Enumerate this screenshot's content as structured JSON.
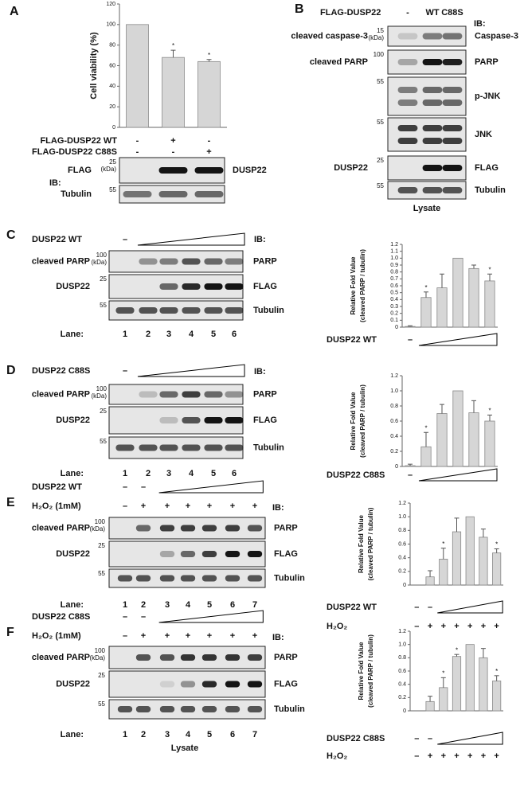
{
  "panel_labels": [
    "A",
    "B",
    "C",
    "D",
    "E",
    "F"
  ],
  "chart_data": [
    {
      "type": "bar",
      "ylabel": "Cell viability (%)",
      "values": [
        100,
        68,
        64
      ],
      "errors": [
        null,
        7,
        2
      ],
      "significance": [
        null,
        "*",
        "*"
      ],
      "color": "#d6d6d6",
      "ylim": [
        0,
        120
      ],
      "yticks": [
        0,
        20,
        40,
        60,
        80,
        100,
        120
      ],
      "conditions": [
        {
          "label": "FLAG-DUSP22 WT",
          "marks": [
            "-",
            "+",
            "-"
          ]
        },
        {
          "label": "FLAG-DUSP22 C88S",
          "marks": [
            "-",
            "-",
            "+"
          ]
        }
      ]
    },
    {
      "type": "bar",
      "ylabel": [
        "Relative Fold Value",
        "(cleaved PARP / tubulin)"
      ],
      "values": [
        0.01,
        0.43,
        0.57,
        1.0,
        0.85,
        0.67
      ],
      "errors": [
        0.01,
        0.08,
        0.2,
        null,
        0.05,
        0.1
      ],
      "significance": [
        null,
        "*",
        null,
        null,
        null,
        "*"
      ],
      "color": "#d6d6d6",
      "ylim": [
        0,
        1.2
      ],
      "yticks": [
        0,
        0.1,
        0.2,
        0.3,
        0.4,
        0.5,
        0.6,
        0.7,
        0.8,
        0.9,
        {
          "value": 1,
          "label": "1.0"
        },
        1.1,
        1.2
      ],
      "conditions": [
        {
          "label": "DUSP22 WT",
          "marks": [
            "–",
            null,
            null,
            null,
            null,
            null
          ]
        }
      ]
    },
    {
      "type": "bar",
      "ylabel": [
        "Relative Fold Value",
        "(cleaved PARP / tubulin)"
      ],
      "values": [
        0.01,
        0.26,
        0.7,
        1.0,
        0.71,
        0.6
      ],
      "errors": [
        0.02,
        0.19,
        0.12,
        null,
        0.16,
        0.08
      ],
      "significance": [
        null,
        "*",
        null,
        null,
        null,
        "*"
      ],
      "color": "#d6d6d6",
      "ylim": [
        0,
        1.2
      ],
      "yticks": [
        0,
        0.2,
        0.4,
        0.6,
        0.8,
        {
          "value": 1,
          "label": "1.0"
        },
        1.2
      ],
      "conditions": [
        {
          "label": "DUSP22 C88S",
          "marks": [
            "–",
            null,
            null,
            null,
            null,
            null
          ]
        }
      ]
    },
    {
      "type": "bar",
      "ylabel": [
        "Relative Fold Value",
        "(cleaved PARP / tubulin)"
      ],
      "values": [
        0,
        0.12,
        0.38,
        0.78,
        1.0,
        0.7,
        0.47
      ],
      "errors": [
        null,
        0.09,
        0.16,
        0.2,
        null,
        0.12,
        0.06
      ],
      "significance": [
        null,
        null,
        "*",
        null,
        null,
        null,
        "*"
      ],
      "color": "#d6d6d6",
      "ylim": [
        0,
        1.2
      ],
      "yticks": [
        0,
        0.2,
        0.4,
        0.6,
        0.8,
        {
          "value": 1,
          "label": "1.0"
        },
        1.2
      ],
      "conditions": [
        {
          "label": "DUSP22 WT",
          "marks": [
            "–",
            "–",
            null,
            null,
            null,
            null,
            null
          ]
        },
        {
          "label": "H₂O₂",
          "marks": [
            "–",
            "+",
            "+",
            "+",
            "+",
            "+",
            "+"
          ]
        }
      ]
    },
    {
      "type": "bar",
      "ylabel": [
        "Relative Fold Value",
        "(cleaved PARP / tubulin)"
      ],
      "values": [
        0,
        0.14,
        0.35,
        0.82,
        1.0,
        0.8,
        0.45
      ],
      "errors": [
        null,
        0.08,
        0.15,
        0.03,
        null,
        0.14,
        0.08
      ],
      "significance": [
        null,
        null,
        "*",
        "*",
        null,
        null,
        "*"
      ],
      "color": "#d6d6d6",
      "ylim": [
        0,
        1.2
      ],
      "yticks": [
        0,
        0.2,
        0.4,
        0.6,
        0.8,
        {
          "value": 1,
          "label": "1.0"
        },
        1.2
      ],
      "conditions": [
        {
          "label": "DUSP22 C88S",
          "marks": [
            "–",
            "–",
            null,
            null,
            null,
            null,
            null
          ]
        },
        {
          "label": "H₂O₂",
          "marks": [
            "–",
            "+",
            "+",
            "+",
            "+",
            "+",
            "+"
          ]
        }
      ]
    }
  ],
  "blots": [
    {
      "ib": "IB:",
      "rows": [
        {
          "marker": "25",
          "unit": "(kDa)",
          "left": "FLAG",
          "right": "DUSP22"
        },
        {
          "marker": "55",
          "left": "Tubulin"
        }
      ]
    },
    {
      "headers": [
        {
          "label": "FLAG-DUSP22",
          "marks": [
            "-",
            "WT",
            "C88S"
          ]
        }
      ],
      "ib": "IB:",
      "rows": [
        {
          "marker": "15",
          "unit": "(kDa)",
          "left": "cleaved caspase-3",
          "right": "Caspase-3"
        },
        {
          "marker": "100",
          "left": "cleaved PARP",
          "right": "PARP"
        },
        {
          "marker": "55",
          "right": "p-JNK"
        },
        {
          "marker": "55",
          "right": "JNK"
        },
        {
          "marker": "25",
          "left": "DUSP22",
          "right": "FLAG"
        },
        {
          "marker": "55",
          "right": "Tubulin"
        }
      ],
      "footer": "Lysate"
    },
    {
      "headers": [
        {
          "label": "DUSP22 WT",
          "marks": [
            "–",
            null,
            null,
            null,
            null,
            null
          ]
        }
      ],
      "ib": "IB:",
      "rows": [
        {
          "marker": "100",
          "unit": "(kDa)",
          "left": "cleaved PARP",
          "right": "PARP"
        },
        {
          "marker": "25",
          "left": "DUSP22",
          "right": "FLAG"
        },
        {
          "marker": "55",
          "right": "Tubulin"
        }
      ],
      "lane_label": "Lane:",
      "lanes": [
        "1",
        "2",
        "3",
        "4",
        "5",
        "6"
      ]
    },
    {
      "headers": [
        {
          "label": "DUSP22 C88S",
          "marks": [
            "–",
            null,
            null,
            null,
            null,
            null
          ]
        }
      ],
      "ib": "IB:",
      "rows": [
        {
          "marker": "100",
          "unit": "(kDa)",
          "left": "cleaved PARP",
          "right": "PARP"
        },
        {
          "marker": "25",
          "left": "DUSP22",
          "right": "FLAG"
        },
        {
          "marker": "55",
          "right": "Tubulin"
        }
      ],
      "lane_label": "Lane:",
      "lanes": [
        "1",
        "2",
        "3",
        "4",
        "5",
        "6"
      ]
    },
    {
      "headers": [
        {
          "label": "DUSP22 WT",
          "marks": [
            "–",
            "–",
            null,
            null,
            null,
            null,
            null
          ]
        },
        {
          "label": "H₂O₂ (1mM)",
          "marks": [
            "–",
            "+",
            "+",
            "+",
            "+",
            "+",
            "+"
          ]
        }
      ],
      "ib": "IB:",
      "rows": [
        {
          "marker": "100",
          "unit": "(kDa)",
          "left": "cleaved PARP",
          "right": "PARP"
        },
        {
          "marker": "25",
          "left": "DUSP22",
          "right": "FLAG"
        },
        {
          "marker": "55",
          "right": "Tubulin"
        }
      ],
      "lane_label": "Lane:",
      "lanes": [
        "1",
        "2",
        "3",
        "4",
        "5",
        "6",
        "7"
      ]
    },
    {
      "headers": [
        {
          "label": "DUSP22 C88S",
          "marks": [
            "–",
            "–",
            null,
            null,
            null,
            null,
            null
          ]
        },
        {
          "label": "H₂O₂ (1mM)",
          "marks": [
            "–",
            "+",
            "+",
            "+",
            "+",
            "+",
            "+"
          ]
        }
      ],
      "ib": "IB:",
      "rows": [
        {
          "marker": "100",
          "unit": "(kDa)",
          "left": "cleaved PARP",
          "right": "PARP"
        },
        {
          "marker": "25",
          "left": "DUSP22",
          "right": "FLAG"
        },
        {
          "marker": "55",
          "right": "Tubulin"
        }
      ],
      "lane_label": "Lane:",
      "lanes": [
        "1",
        "2",
        "3",
        "4",
        "5",
        "6",
        "7"
      ],
      "footer": "Lysate"
    }
  ]
}
